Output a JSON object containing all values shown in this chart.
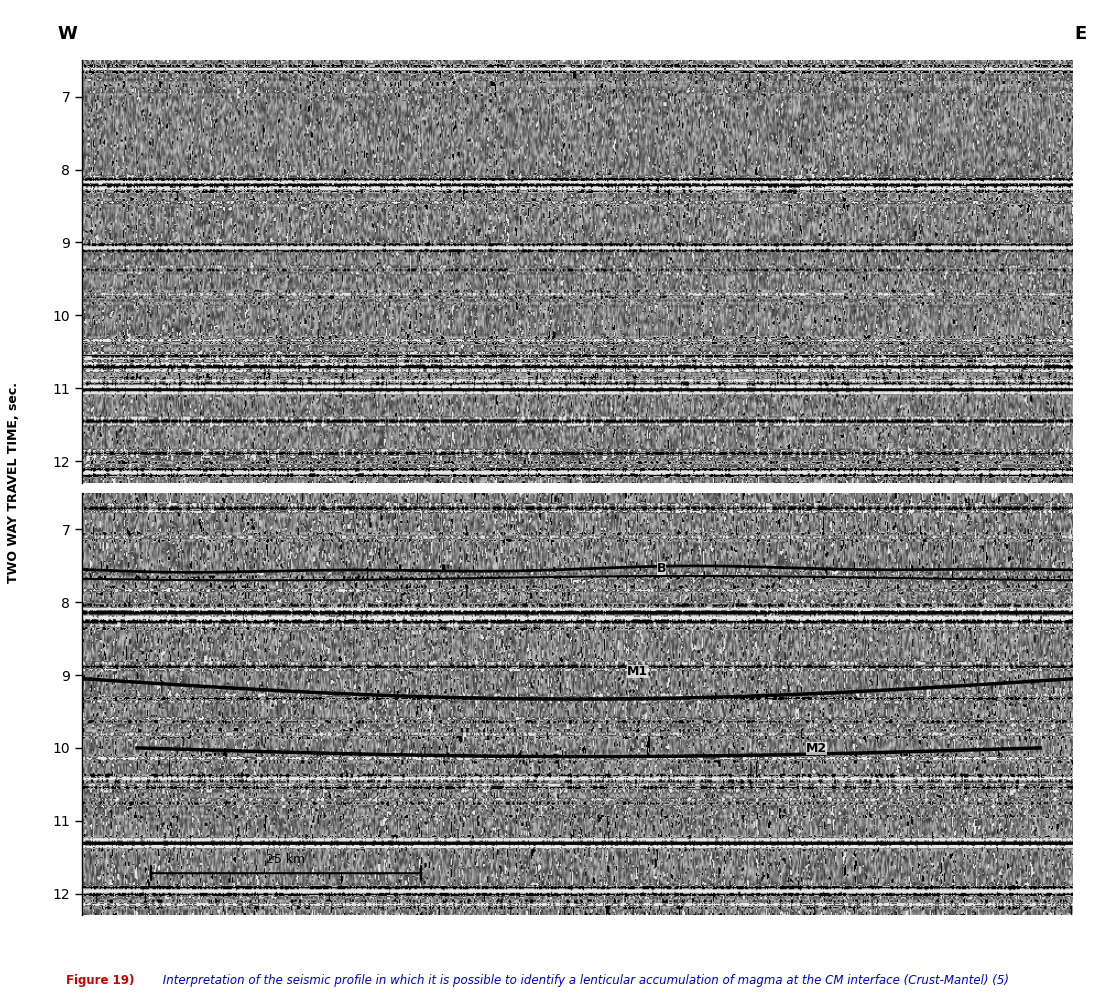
{
  "caption_bold": "Figure 19)",
  "caption_italic": " Interpretation of the seismic profile in which it is possible to identify a lenticular accumulation of magma at the CM interface (Crust-Mantel) (5)",
  "ylabel": "TWO WAY TRAVEL TIME, sec.",
  "west_label": "W",
  "east_label": "E",
  "panel_yticks": [
    7,
    8,
    9,
    10,
    11,
    12
  ],
  "ymin": 6.5,
  "ymax": 12.3,
  "scale_bar_label": "25 km",
  "background_color": "#ffffff",
  "caption_color_bold": "#cc0000",
  "caption_color_italic": "#0000cc"
}
